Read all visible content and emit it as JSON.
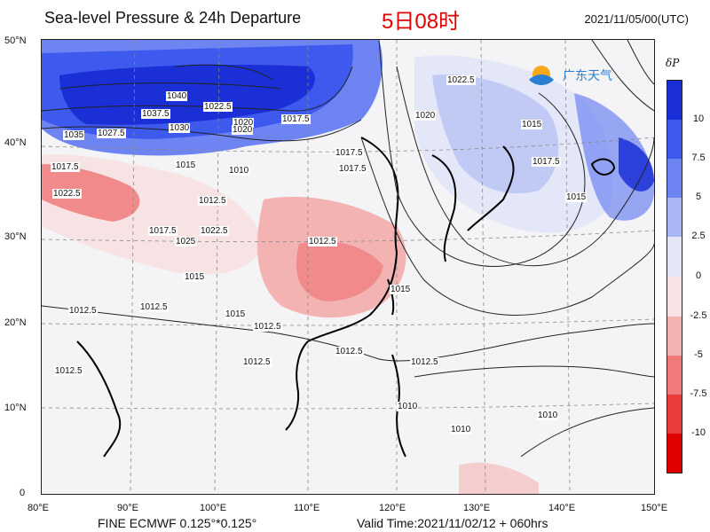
{
  "header": {
    "title": "Sea-level Pressure & 24h Departure",
    "local_time": "5日08时",
    "date_utc": "2021/11/05/00(UTC)"
  },
  "axes": {
    "lat_labels": [
      "50°N",
      "40°N",
      "30°N",
      "20°N",
      "10°N",
      "0"
    ],
    "lon_labels": [
      "80°E",
      "90°E",
      "100°E",
      "110°E",
      "120°E",
      "130°E",
      "140°E",
      "150°E"
    ]
  },
  "footer": {
    "model": "FINE ECMWF 0.125°*0.125°",
    "valid": "Valid Time:2021/11/02/12 + 060hrs"
  },
  "logo": {
    "text": "广东天气"
  },
  "colorbar": {
    "title": "δP",
    "ticks": [
      "10",
      "7.5",
      "5",
      "2.5",
      "0",
      "-2.5",
      "-5",
      "-7.5",
      "-10"
    ],
    "colors": {
      "gt10": "#1a2fd6",
      "7.5-10": "#3d59ee",
      "5-7.5": "#6d84f2",
      "2.5-5": "#aab5f4",
      "0-2.5": "#e4e7f7",
      "-2.5-0": "#f7e3e3",
      "-5--2.5": "#f4b3b3",
      "-7.5--5": "#f07a7a",
      "-10--7.5": "#ea3c3c",
      "lt-10": "#e00000"
    }
  },
  "contour_labels": [
    "1040",
    "1035",
    "1027.5",
    "1037.5",
    "1030",
    "1022.5",
    "1020",
    "1017.5",
    "1015",
    "1017.5",
    "1022.5",
    "1010",
    "1012.5",
    "1012.5",
    "1017.5",
    "1017.5",
    "1015",
    "1022.5",
    "1025",
    "1017.5",
    "1015",
    "1012.5",
    "1020",
    "1022.5",
    "1020",
    "1015",
    "1017.5",
    "1015",
    "1012.5",
    "1012.5",
    "1010",
    "1012.5",
    "1012.5",
    "1015",
    "1012.5",
    "1012.5",
    "1010",
    "1010"
  ]
}
